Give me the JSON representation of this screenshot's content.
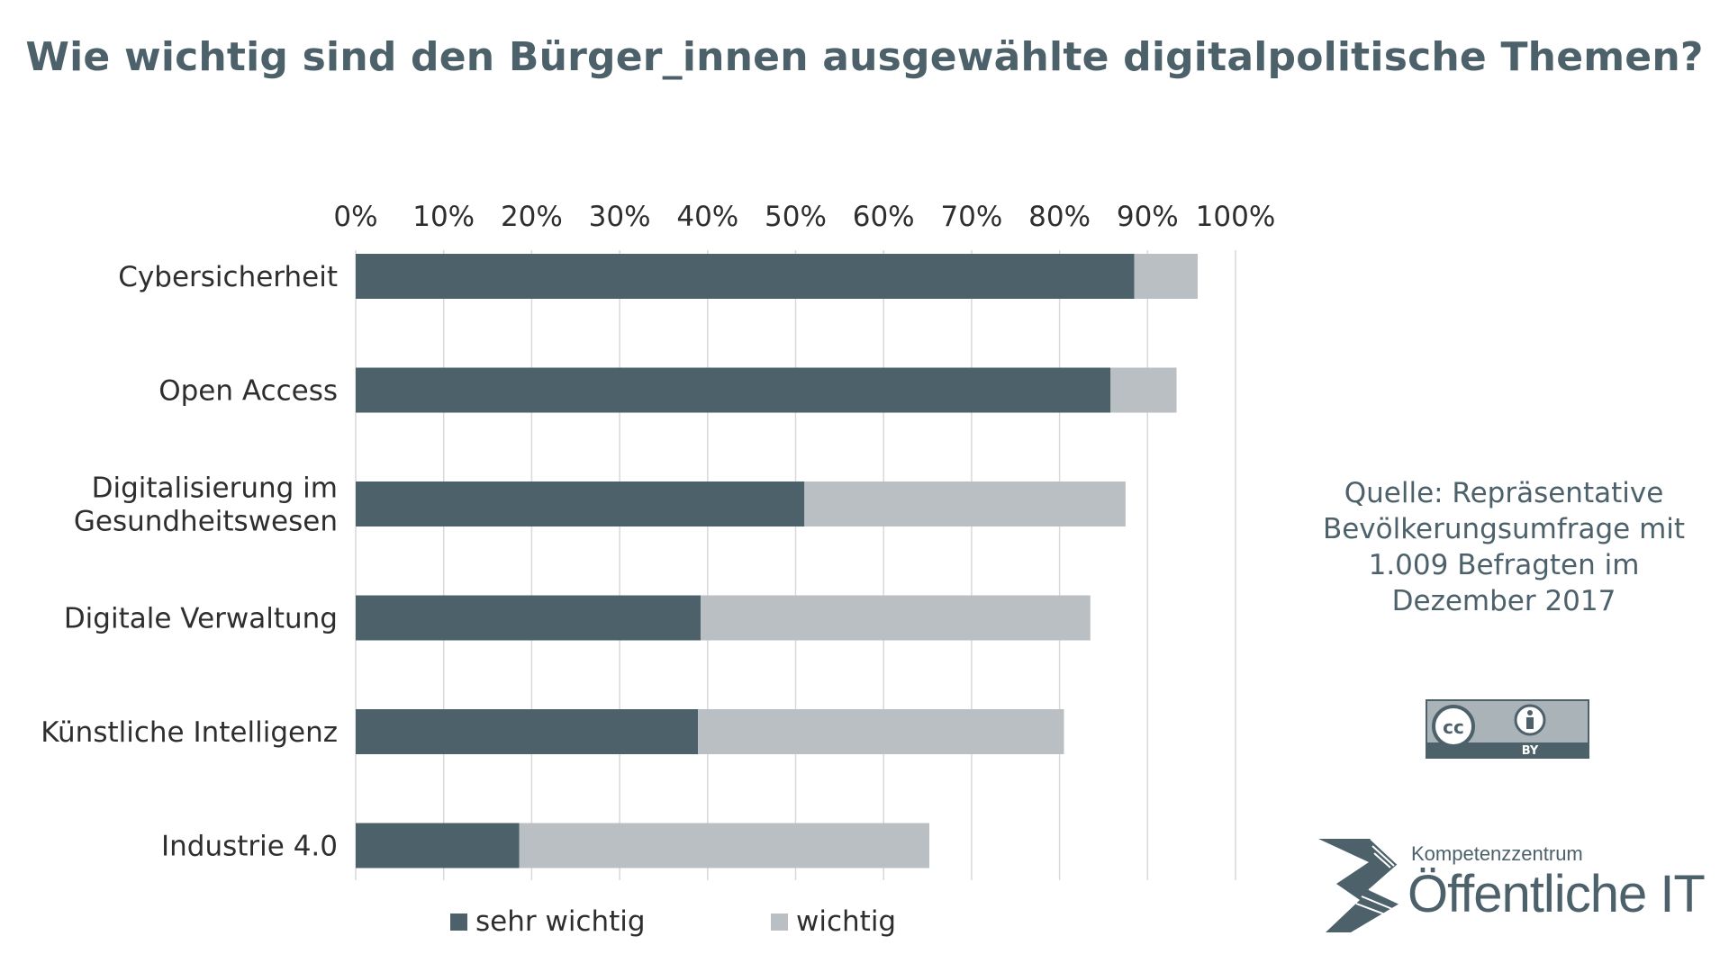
{
  "title": "Wie wichtig sind den Bürger_innen ausgewählte digitalpolitische Themen?",
  "source_lines": [
    "Quelle: Repräsentative",
    "Bevölkerungsumfrage mit",
    "1.009 Befragten im",
    "Dezember 2017"
  ],
  "license": {
    "cc": "cc",
    "by": "BY"
  },
  "logo": {
    "small": "Kompetenzzentrum",
    "big": "Öffentliche IT"
  },
  "colors": {
    "sehr_wichtig": "#4d616b",
    "wichtig": "#babfc3",
    "title": "#4d616b",
    "grid": "#d9d9d9"
  },
  "chart_data": {
    "type": "bar",
    "orientation": "horizontal",
    "stacked": true,
    "title": "Wie wichtig sind den Bürger_innen ausgewählte digitalpolitische Themen?",
    "xlim": [
      0,
      100
    ],
    "ticks": [
      "0%",
      "10%",
      "20%",
      "30%",
      "40%",
      "50%",
      "60%",
      "70%",
      "80%",
      "90%",
      "100%"
    ],
    "tick_values": [
      0,
      10,
      20,
      30,
      40,
      50,
      60,
      70,
      80,
      90,
      100
    ],
    "axis_position": "top",
    "grid": true,
    "legend_position": "bottom",
    "categories": [
      "Cybersicherheit",
      "Open Access",
      "Digitalisierung im Gesundheitswesen",
      "Digitale Verwaltung",
      "Künstliche Intelligenz",
      "Industrie 4.0"
    ],
    "category_lines": [
      [
        "Cybersicherheit"
      ],
      [
        "Open Access"
      ],
      [
        "Digitalisierung im",
        "Gesundheitswesen"
      ],
      [
        "Digitale Verwaltung"
      ],
      [
        "Künstliche Intelligenz"
      ],
      [
        "Industrie 4.0"
      ]
    ],
    "series": [
      {
        "name": "sehr wichtig",
        "values": [
          88.5,
          85.8,
          51,
          39.2,
          38.9,
          18.6
        ]
      },
      {
        "name": "wichtig",
        "values": [
          7.2,
          7.5,
          36.5,
          44.3,
          41.6,
          46.6
        ]
      }
    ]
  }
}
